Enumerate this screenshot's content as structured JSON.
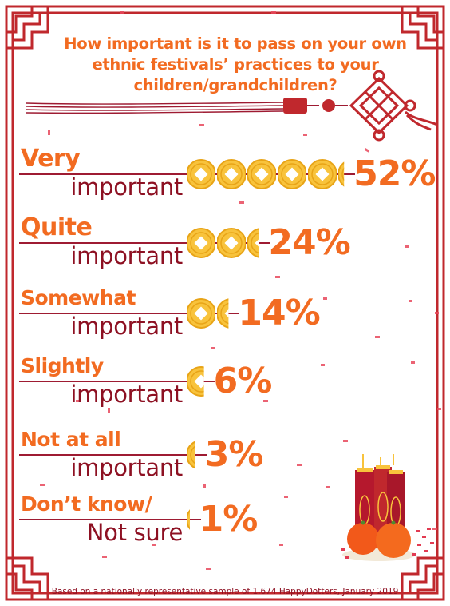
{
  "title": "How important is it to pass on your own ethnic festivals’ practices to your children/grandchildren?",
  "footnote": "Based on a nationally representative sample of 1,674 HappyDotters, January 2019",
  "colors": {
    "orange": "#f26b21",
    "maroon": "#8d1022",
    "red": "#c0282d",
    "gold": "#f8c33c"
  },
  "chart_data": {
    "type": "bar",
    "unit": "%",
    "categories": [
      {
        "top": "Very",
        "bottom": "important"
      },
      {
        "top": "Quite",
        "bottom": "important"
      },
      {
        "top": "Somewhat",
        "bottom": "important"
      },
      {
        "top": "Slightly",
        "bottom": "important"
      },
      {
        "top": "Not at all",
        "bottom": "important"
      },
      {
        "top": "Don’t know/",
        "bottom": "Not sure"
      }
    ],
    "values": [
      52,
      24,
      14,
      6,
      3,
      1
    ],
    "labels": [
      "52%",
      "24%",
      "14%",
      "6%",
      "3%",
      "1%"
    ],
    "coins_per_10_percent": 1
  }
}
